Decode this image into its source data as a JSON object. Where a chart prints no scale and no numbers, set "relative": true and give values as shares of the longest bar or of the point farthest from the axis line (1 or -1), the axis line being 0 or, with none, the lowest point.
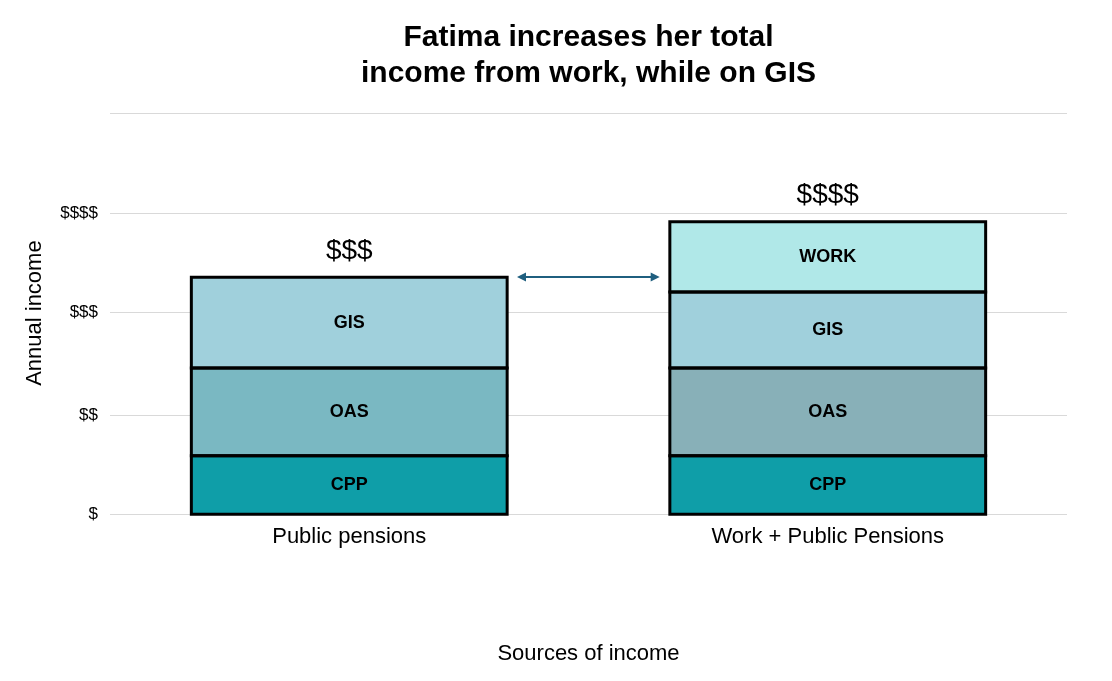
{
  "chart_data": {
    "type": "bar",
    "title": "Fatima increases her total income from work, while on GIS",
    "xlabel": "Sources of income",
    "ylabel": "Annual income",
    "categories": [
      "Public pensions",
      "Work + Public Pensions"
    ],
    "stacked": true,
    "relative": true,
    "series": [
      {
        "name": "CPP",
        "color": "#0f9ea8",
        "values": [
          0.2,
          0.2
        ]
      },
      {
        "name": "OAS",
        "colors": [
          "#7ab8c2",
          "#88b0b8"
        ],
        "values": [
          0.3,
          0.3
        ]
      },
      {
        "name": "GIS",
        "color": "#a0d0dc",
        "values": [
          0.31,
          0.26
        ]
      },
      {
        "name": "WORK",
        "color": "#b0e8e8",
        "values": [
          null,
          0.24
        ]
      }
    ],
    "totals": [
      "$$$",
      "$$$$"
    ],
    "ref_lines": [
      {
        "axis": "y",
        "value": 0,
        "label": "$",
        "color": "#d9d9d9"
      },
      {
        "axis": "y",
        "value": 0.34,
        "label": "$$",
        "color": "#d9d9d9"
      },
      {
        "axis": "y",
        "value": 0.69,
        "label": "$$$",
        "color": "#d9d9d9"
      },
      {
        "axis": "y",
        "value": 1.03,
        "label": "$$$$",
        "color": "#d9d9d9"
      },
      {
        "axis": "y",
        "value": 1.37,
        "color": "#d9d9d9"
      }
    ],
    "legend": false
  }
}
